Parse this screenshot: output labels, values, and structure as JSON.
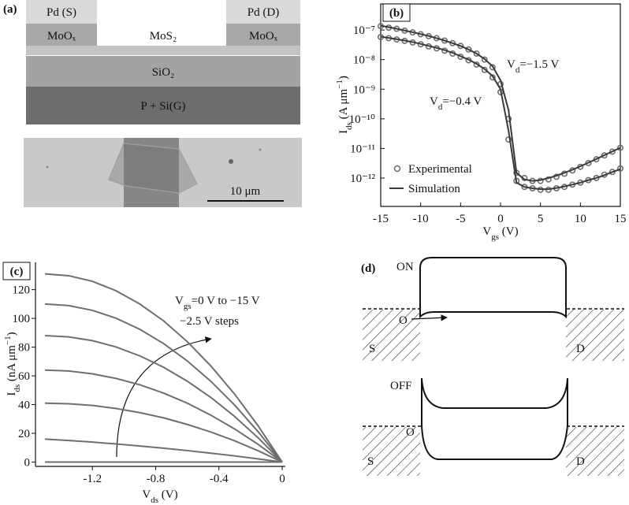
{
  "panel_a": {
    "label": "(a)",
    "source": "Pd (S)",
    "drain": "Pd (D)",
    "contact_left": "MoOₓ",
    "contact_right": "MoOₓ",
    "channel": "MoS₂",
    "oxide": "SiO₂",
    "gate": "P + Si(G)",
    "scale_bar": "10 μm"
  },
  "chart_data": [
    {
      "type": "line",
      "panel_label": "(b)",
      "x": [
        -15,
        -14,
        -13,
        -12,
        -11,
        -10,
        -9,
        -8,
        -7,
        -6,
        -5,
        -4,
        -3,
        -2,
        -1,
        0,
        1,
        2,
        3,
        4,
        5,
        6,
        7,
        8,
        9,
        10,
        11,
        12,
        13,
        14,
        15
      ],
      "xlim": [
        -15,
        15
      ],
      "xticks": [
        -15,
        -10,
        -5,
        0,
        5,
        10,
        15
      ],
      "ylim": [
        1.1e-13,
        7.6e-07
      ],
      "log_y": true,
      "yticks": [
        {
          "value": 1e-12,
          "label": "10⁻¹²"
        },
        {
          "value": 1e-11,
          "label": "10⁻¹¹"
        },
        {
          "value": 1e-10,
          "label": "10⁻¹⁰"
        },
        {
          "value": 1e-09,
          "label": "10⁻⁹"
        },
        {
          "value": 1e-08,
          "label": "10⁻⁸"
        },
        {
          "value": 1e-07,
          "label": "10⁻⁷"
        }
      ],
      "x_label": [
        {
          "text": "V"
        },
        {
          "text": "gs",
          "shift": "sub"
        },
        {
          "text": " (V)"
        }
      ],
      "y_label": [
        {
          "text": "I"
        },
        {
          "text": "ds",
          "shift": "sub"
        },
        {
          "text": " (A μm"
        },
        {
          "text": "−1",
          "shift": "sup"
        },
        {
          "text": ")"
        }
      ],
      "legend": "lower left",
      "series": [
        {
          "name": "Experimental",
          "color": "#6e6e6e",
          "marker": "circle",
          "curves": [
            [
              1.35e-07,
              1.2e-07,
              1.1e-07,
              9.5e-08,
              8.3e-08,
              7.2e-08,
              6.2e-08,
              5.3e-08,
              4.4e-08,
              3.6e-08,
              2.9e-08,
              2.2e-08,
              1.6e-08,
              1e-08,
              5.5e-09,
              1.5e-09,
              1e-10,
              1.5e-12,
              1e-12,
              8e-13,
              8e-13,
              9e-13,
              1.1e-12,
              1.4e-12,
              1.8e-12,
              2.4e-12,
              3.2e-12,
              4.3e-12,
              5.8e-12,
              7.8e-12,
              1.05e-11
            ],
            [
              5.8e-08,
              5.3e-08,
              4.8e-08,
              4.3e-08,
              3.8e-08,
              3.3e-08,
              2.8e-08,
              2.4e-08,
              2e-08,
              1.6e-08,
              1.25e-08,
              9.5e-09,
              6.8e-09,
              4.5e-09,
              2.5e-09,
              8e-10,
              2e-11,
              8e-13,
              5e-13,
              4.5e-13,
              4e-13,
              4e-13,
              4.5e-13,
              5e-13,
              6e-13,
              7e-13,
              8.5e-13,
              1e-12,
              1.3e-12,
              1.6e-12,
              2.1e-12
            ]
          ]
        },
        {
          "name": "Simulation",
          "color": "#3a3a3a",
          "marker": "none",
          "curves": [
            [
              1.4e-07,
              1.25e-07,
              1.1e-07,
              9.6e-08,
              8.4e-08,
              7.3e-08,
              6.3e-08,
              5.3e-08,
              4.4e-08,
              3.6e-08,
              2.9e-08,
              2.2e-08,
              1.6e-08,
              1.05e-08,
              6e-09,
              2e-09,
              2e-10,
              1.5e-12,
              9e-13,
              8e-13,
              8.5e-13,
              1e-12,
              1.2e-12,
              1.5e-12,
              1.9e-12,
              2.5e-12,
              3.3e-12,
              4.4e-12,
              5.9e-12,
              7.9e-12,
              1.05e-11
            ],
            [
              6e-08,
              5.4e-08,
              4.9e-08,
              4.4e-08,
              3.9e-08,
              3.4e-08,
              2.9e-08,
              2.5e-08,
              2.1e-08,
              1.7e-08,
              1.3e-08,
              1e-08,
              7.2e-09,
              4.8e-09,
              2.8e-09,
              1e-09,
              4e-11,
              7e-13,
              5e-13,
              4.5e-13,
              4.2e-13,
              4.2e-13,
              4.6e-13,
              5.2e-13,
              6e-13,
              7e-13,
              8.5e-13,
              1e-12,
              1.25e-12,
              1.6e-12,
              2e-12
            ]
          ]
        }
      ],
      "annotations": [
        [
          {
            "text": "V"
          },
          {
            "text": "d",
            "shift": "sub"
          },
          {
            "text": "=−1.5 V"
          }
        ],
        [
          {
            "text": "V"
          },
          {
            "text": "d",
            "shift": "sub"
          },
          {
            "text": "=−0.4 V"
          }
        ]
      ]
    },
    {
      "type": "line",
      "panel_label": "(c)",
      "x": [
        -1.5,
        -1.35,
        -1.2,
        -1.05,
        -0.9,
        -0.75,
        -0.6,
        -0.45,
        -0.3,
        -0.15,
        0
      ],
      "xlim": [
        -1.56,
        0.02
      ],
      "xticks": [
        -1.2,
        -0.8,
        -0.4,
        0
      ],
      "ylim": [
        -3,
        139
      ],
      "yticks": [
        0,
        20,
        40,
        60,
        80,
        100,
        120
      ],
      "x_label": [
        {
          "text": "V"
        },
        {
          "text": "ds",
          "shift": "sub"
        },
        {
          "text": " (V)"
        }
      ],
      "y_label": [
        {
          "text": "I"
        },
        {
          "text": "ds",
          "shift": "sub"
        },
        {
          "text": " (nA μm"
        },
        {
          "text": "−1",
          "shift": "sup"
        },
        {
          "text": ")"
        }
      ],
      "series": [
        {
          "color": "#6e6e6e",
          "values": [
            131,
            129.7,
            125.8,
            119.2,
            110,
            98.3,
            83.8,
            66.8,
            47.2,
            24.9,
            0
          ]
        },
        {
          "color": "#6e6e6e",
          "values": [
            110,
            108.9,
            105.6,
            100.1,
            92.4,
            82.5,
            70.4,
            56.1,
            39.6,
            20.9,
            0
          ]
        },
        {
          "color": "#6e6e6e",
          "values": [
            88,
            87.1,
            84.5,
            80.1,
            73.9,
            66,
            56.3,
            44.9,
            31.7,
            16.7,
            0
          ]
        },
        {
          "color": "#6e6e6e",
          "values": [
            64,
            63.4,
            61.4,
            58.2,
            53.8,
            48,
            41,
            32.6,
            23,
            12.2,
            0
          ]
        },
        {
          "color": "#6e6e6e",
          "values": [
            41,
            40.6,
            39.4,
            37.3,
            34.4,
            30.8,
            26.2,
            20.9,
            14.8,
            7.8,
            0
          ]
        },
        {
          "color": "#6e6e6e",
          "values": [
            16,
            15,
            13.9,
            12.6,
            11.2,
            9.7,
            8,
            6.2,
            4.3,
            2.2,
            0
          ]
        },
        {
          "color": "#6e6e6e",
          "values": [
            0,
            0,
            0,
            0,
            0,
            0,
            0,
            0,
            0,
            0,
            0
          ]
        }
      ],
      "annotations": [
        [
          {
            "text": "V"
          },
          {
            "text": "gs",
            "shift": "sub"
          },
          {
            "text": "=0 V to −15 V"
          }
        ],
        [
          {
            "text": "−2.5 V steps"
          }
        ]
      ]
    }
  ],
  "panel_d": {
    "label": "(d)",
    "on": {
      "state": "ON",
      "origin": "O",
      "source": "S",
      "drain": "D"
    },
    "off": {
      "state": "OFF",
      "origin": "O",
      "source": "S",
      "drain": "D"
    }
  }
}
